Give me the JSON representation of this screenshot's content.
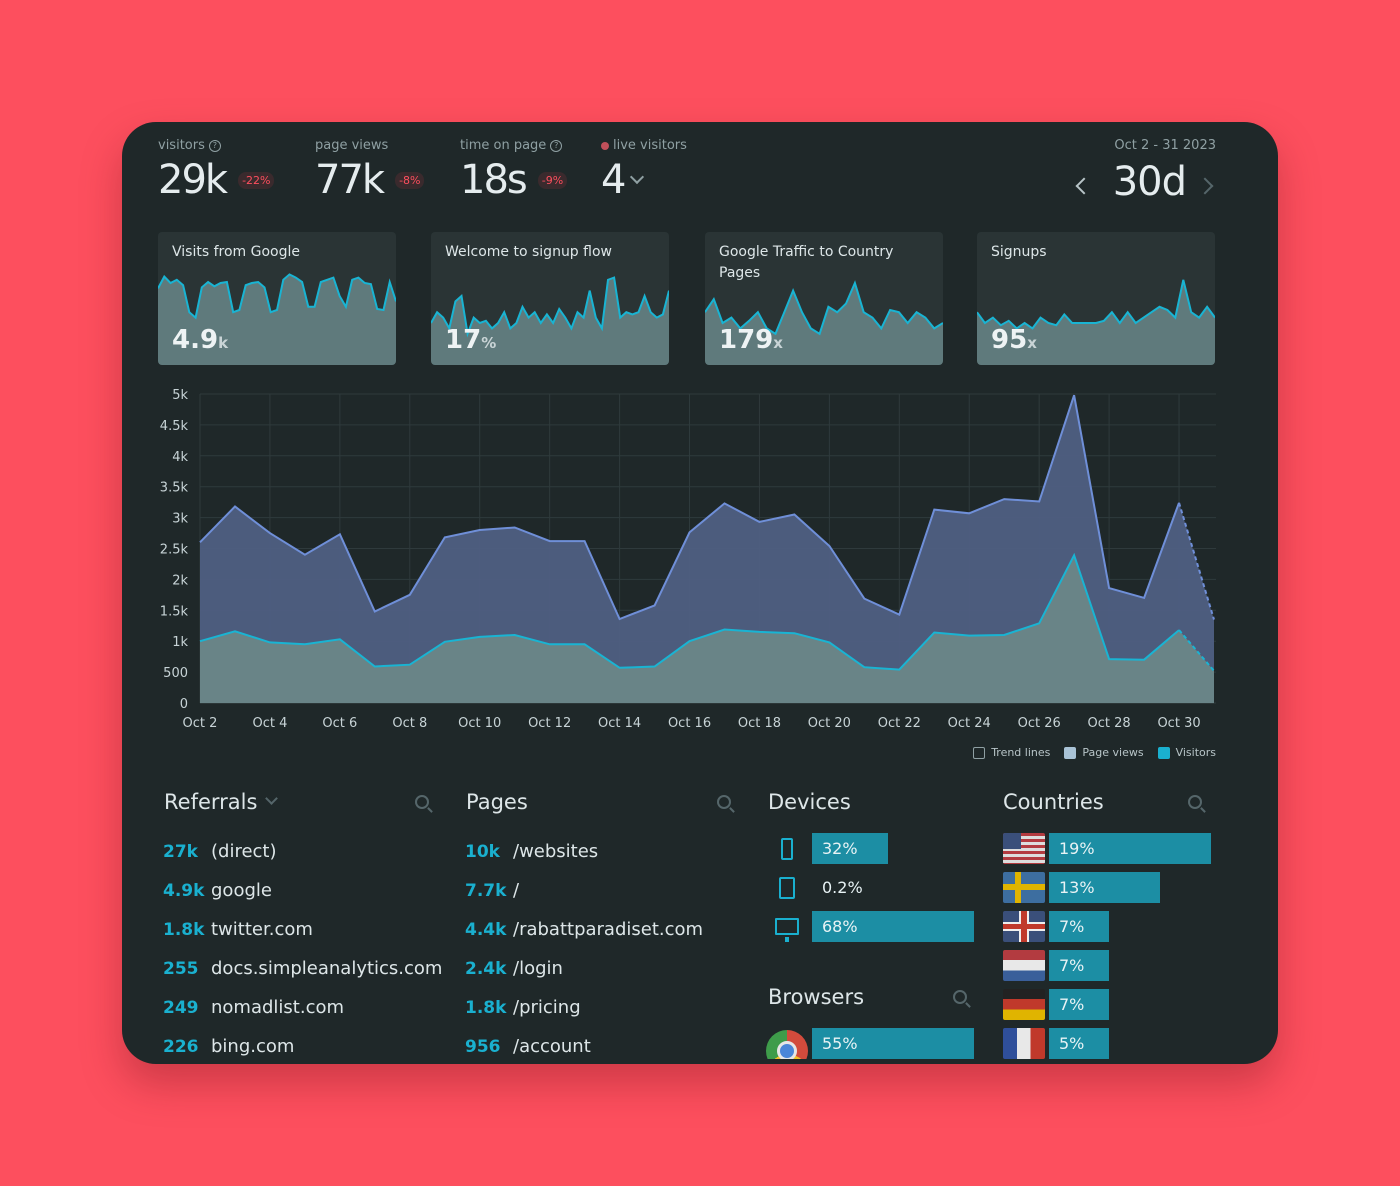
{
  "stats": {
    "visitors": {
      "label": "visitors",
      "value": "29k",
      "delta": "-22%"
    },
    "pageviews": {
      "label": "page views",
      "value": "77k",
      "delta": "-8%"
    },
    "time_on_page": {
      "label": "time on page",
      "value": "18s",
      "delta": "-9%"
    },
    "live": {
      "label": "live visitors",
      "value": "4"
    },
    "date_range": "Oct 2 - 31 2023",
    "period": "30d",
    "help_icon": "?"
  },
  "cards": [
    {
      "title": "Visits from Google",
      "value": "4.9",
      "unit": "k",
      "spark": [
        0.82,
        0.93,
        0.87,
        0.9,
        0.85,
        0.6,
        0.55,
        0.83,
        0.88,
        0.84,
        0.87,
        0.88,
        0.6,
        0.62,
        0.85,
        0.87,
        0.88,
        0.83,
        0.6,
        0.62,
        0.9,
        0.95,
        0.92,
        0.88,
        0.65,
        0.65,
        0.88,
        0.9,
        0.92,
        0.75,
        0.65,
        0.9,
        0.92,
        0.87,
        0.86,
        0.63,
        0.62,
        0.88,
        0.7
      ]
    },
    {
      "title": "Welcome to signup flow",
      "value": "17",
      "unit": "%",
      "spark": [
        0.5,
        0.6,
        0.55,
        0.45,
        0.7,
        0.75,
        0.4,
        0.55,
        0.5,
        0.52,
        0.45,
        0.5,
        0.6,
        0.45,
        0.5,
        0.65,
        0.55,
        0.6,
        0.5,
        0.58,
        0.5,
        0.63,
        0.55,
        0.45,
        0.6,
        0.55,
        0.8,
        0.55,
        0.45,
        0.9,
        0.92,
        0.55,
        0.6,
        0.58,
        0.6,
        0.75,
        0.6,
        0.55,
        0.58,
        0.8
      ]
    },
    {
      "title": "Google Traffic to Country Pages",
      "value": "179",
      "unit": "x",
      "spark": [
        0.6,
        0.72,
        0.5,
        0.55,
        0.45,
        0.52,
        0.6,
        0.45,
        0.4,
        0.6,
        0.8,
        0.6,
        0.45,
        0.4,
        0.65,
        0.6,
        0.68,
        0.87,
        0.6,
        0.55,
        0.45,
        0.62,
        0.6,
        0.5,
        0.6,
        0.55,
        0.45,
        0.5
      ]
    },
    {
      "title": "Signups",
      "value": "95",
      "unit": "x",
      "spark": [
        0.6,
        0.5,
        0.55,
        0.48,
        0.52,
        0.45,
        0.5,
        0.45,
        0.55,
        0.5,
        0.48,
        0.58,
        0.5,
        0.5,
        0.5,
        0.5,
        0.52,
        0.6,
        0.5,
        0.6,
        0.5,
        0.55,
        0.6,
        0.65,
        0.62,
        0.55,
        0.9,
        0.6,
        0.55,
        0.65,
        0.55
      ]
    }
  ],
  "chart_data": {
    "type": "area",
    "x": [
      "Oct 2",
      "Oct 3",
      "Oct 4",
      "Oct 5",
      "Oct 6",
      "Oct 7",
      "Oct 8",
      "Oct 9",
      "Oct 10",
      "Oct 11",
      "Oct 12",
      "Oct 13",
      "Oct 14",
      "Oct 15",
      "Oct 16",
      "Oct 17",
      "Oct 18",
      "Oct 19",
      "Oct 20",
      "Oct 21",
      "Oct 22",
      "Oct 23",
      "Oct 24",
      "Oct 25",
      "Oct 26",
      "Oct 27",
      "Oct 28",
      "Oct 29",
      "Oct 30",
      "Oct 31"
    ],
    "xticks": [
      "Oct 2",
      "Oct 4",
      "Oct 6",
      "Oct 8",
      "Oct 10",
      "Oct 12",
      "Oct 14",
      "Oct 16",
      "Oct 18",
      "Oct 20",
      "Oct 22",
      "Oct 24",
      "Oct 26",
      "Oct 28",
      "Oct 30"
    ],
    "yticks": [
      "0",
      "500",
      "1k",
      "1.5k",
      "2k",
      "2.5k",
      "3k",
      "3.5k",
      "4k",
      "4.5k",
      "5k"
    ],
    "ylim": [
      0,
      5000
    ],
    "series": [
      {
        "name": "Page views",
        "values": [
          2600,
          3180,
          2750,
          2400,
          2730,
          1480,
          1750,
          2680,
          2800,
          2840,
          2620,
          2620,
          1360,
          1580,
          2760,
          3230,
          2930,
          3050,
          2540,
          1690,
          1430,
          3130,
          3070,
          3300,
          3260,
          4980,
          1860,
          1700,
          3240,
          1350
        ]
      },
      {
        "name": "Visitors",
        "values": [
          1000,
          1160,
          980,
          950,
          1030,
          590,
          620,
          990,
          1070,
          1100,
          950,
          950,
          570,
          590,
          1000,
          1190,
          1150,
          1130,
          980,
          580,
          540,
          1140,
          1090,
          1100,
          1290,
          2390,
          710,
          700,
          1180,
          520
        ]
      }
    ]
  },
  "legend": {
    "trend": "Trend lines",
    "pageviews": "Page views",
    "visitors": "Visitors"
  },
  "referrals": {
    "title": "Referrals",
    "items": [
      {
        "count": "27k",
        "name": "(direct)"
      },
      {
        "count": "4.9k",
        "name": "google"
      },
      {
        "count": "1.8k",
        "name": "twitter.com"
      },
      {
        "count": "255",
        "name": "docs.simpleanalytics.com"
      },
      {
        "count": "249",
        "name": "nomadlist.com"
      },
      {
        "count": "226",
        "name": "bing.com"
      }
    ]
  },
  "pages": {
    "title": "Pages",
    "items": [
      {
        "count": "10k",
        "name": "/websites"
      },
      {
        "count": "7.7k",
        "name": "/"
      },
      {
        "count": "4.4k",
        "name": "/rabattparadiset.com"
      },
      {
        "count": "2.4k",
        "name": "/login"
      },
      {
        "count": "1.8k",
        "name": "/pricing"
      },
      {
        "count": "956",
        "name": "/account"
      }
    ]
  },
  "devices": {
    "title": "Devices",
    "items": [
      {
        "icon": "phone-icon",
        "pct": "32%",
        "share": 0.32
      },
      {
        "icon": "tablet-icon",
        "pct": "0.2%",
        "share": 0.002
      },
      {
        "icon": "desktop-icon",
        "pct": "68%",
        "share": 0.68
      }
    ]
  },
  "browsers": {
    "title": "Browsers",
    "items": [
      {
        "icon": "chrome-icon",
        "pct": "55%",
        "share": 0.55
      }
    ]
  },
  "countries": {
    "title": "Countries",
    "items": [
      {
        "flag": "us-flag-icon",
        "pct": "19%",
        "share": 0.19
      },
      {
        "flag": "se-flag-icon",
        "pct": "13%",
        "share": 0.13
      },
      {
        "flag": "gb-flag-icon",
        "pct": "7%",
        "share": 0.07
      },
      {
        "flag": "nl-flag-icon",
        "pct": "7%",
        "share": 0.07
      },
      {
        "flag": "de-flag-icon",
        "pct": "7%",
        "share": 0.07
      },
      {
        "flag": "fr-flag-icon",
        "pct": "5%",
        "share": 0.05
      }
    ]
  }
}
